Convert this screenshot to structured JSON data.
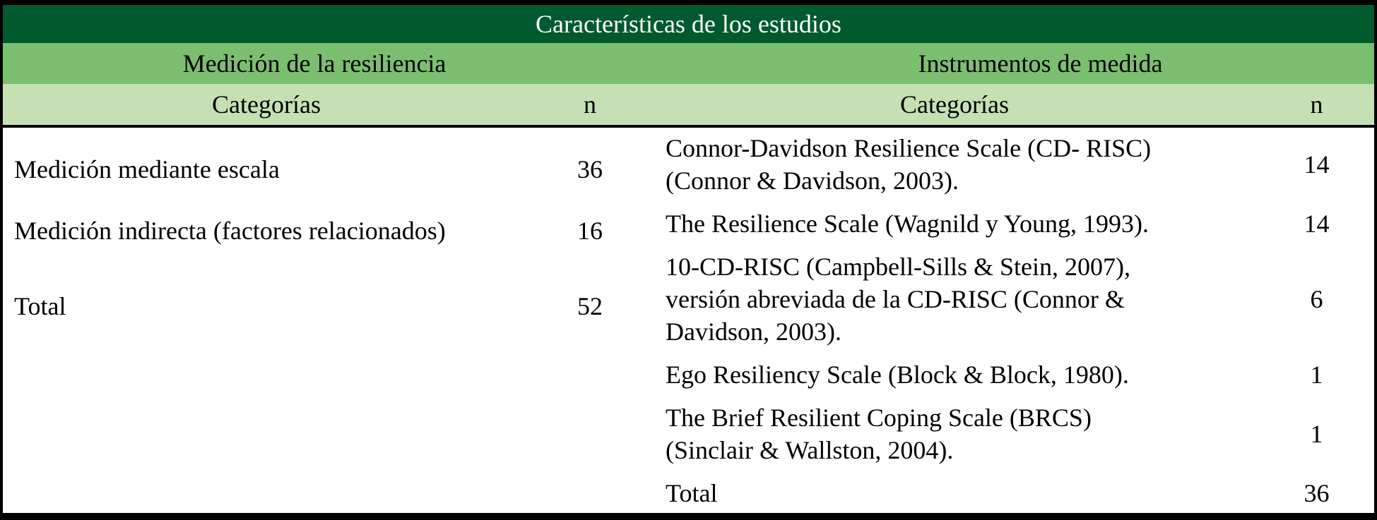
{
  "colors": {
    "title_bg": "#005A2D",
    "section_bg": "#7CBE70",
    "subheader_bg": "#C6E0B4",
    "border": "#000000",
    "title_text": "#FFFFFF",
    "body_text": "#000000"
  },
  "table": {
    "title": "Características de los estudios",
    "sections": [
      {
        "header": "Medición de la resiliencia",
        "columns": {
          "category": "Categorías",
          "n": "n"
        },
        "rows": [
          {
            "category": "Medición mediante escala",
            "n": "36"
          },
          {
            "category": "Medición indirecta (factores relacionados)",
            "n": "16"
          },
          {
            "category": "Total",
            "n": "52"
          }
        ]
      },
      {
        "header": "Instrumentos de medida",
        "columns": {
          "category": "Categorías",
          "n": "n"
        },
        "rows": [
          {
            "category": "Connor-Davidson Resilience Scale (CD- RISC) (Connor & Davidson, 2003).",
            "n": "14"
          },
          {
            "category": "The Resilience Scale (Wagnild y Young, 1993).",
            "n": "14"
          },
          {
            "category": "10-CD-RISC (Campbell-Sills & Stein, 2007), versión abreviada de la CD-RISC (Connor & Davidson, 2003).",
            "n": "6"
          },
          {
            "category": "Ego Resiliency Scale (Block & Block, 1980).",
            "n": "1"
          },
          {
            "category": "The Brief Resilient Coping Scale (BRCS) (Sinclair & Wallston, 2004).",
            "n": "1"
          },
          {
            "category": "Total",
            "n": "36"
          }
        ]
      }
    ]
  }
}
